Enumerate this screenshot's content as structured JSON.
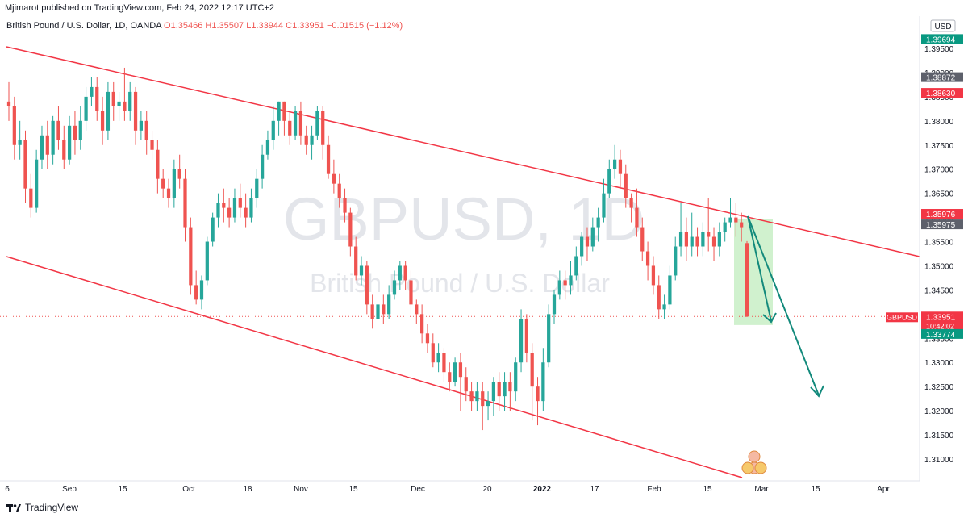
{
  "publisher": "Mjimarot published on TradingView.com, Feb 24, 2022 12:17 UTC+2",
  "symbol_line": "British Pound / U.S. Dollar, 1D, OANDA",
  "ohlc": {
    "o": "O1.35466",
    "h": "H1.35507",
    "l": "L1.33944",
    "c": "C1.33951",
    "chg": "−0.01515 (−1.12%)"
  },
  "watermark": {
    "ticker": "GBPUSD, 1D",
    "name": "British Pound / U.S. Dollar"
  },
  "footer": "TradingView",
  "colors": {
    "up": "#26a69a",
    "down": "#ef5350",
    "channel": "#f23645",
    "arrow": "#138a7c",
    "target": "#c8efc6"
  },
  "chart_data": {
    "type": "candlestick",
    "currency": "USD",
    "y_ticks": [
      "1.31000",
      "1.31500",
      "1.32000",
      "1.32500",
      "1.33000",
      "1.33500",
      "1.34000",
      "1.34500",
      "1.35000",
      "1.35500",
      "1.36000",
      "1.36500",
      "1.37000",
      "1.37500",
      "1.38000",
      "1.38500",
      "1.39000",
      "1.39500"
    ],
    "ylim": [
      1.3065,
      1.4005
    ],
    "x_ticks": [
      "6",
      "Sep",
      "15",
      "Oct",
      "18",
      "Nov",
      "15",
      "Dec",
      "20",
      "2022",
      "17",
      "Feb",
      "15",
      "Mar",
      "15",
      "Apr"
    ],
    "price_labels": [
      {
        "text": "1.39694",
        "value": 1.39694,
        "color": "#089981"
      },
      {
        "text": "1.38872",
        "value": 1.38872,
        "color": "#5d606b"
      },
      {
        "text": "1.38630",
        "value": 1.3863,
        "color": "#f23645"
      },
      {
        "text": "1.35976",
        "value": 1.35976,
        "color": "#f23645"
      },
      {
        "text": "1.35975",
        "value": 1.35975,
        "color": "#5d606b"
      },
      {
        "text": "1.33951",
        "value": 1.33951,
        "color": "#f23645",
        "tag": "GBPUSD",
        "sub": "10:42:02"
      },
      {
        "text": "1.33774",
        "value": 1.33774,
        "color": "#089981"
      }
    ],
    "last_price": 1.33951,
    "candles": [
      [
        1.384,
        1.383,
        1.388,
        1.38
      ],
      [
        1.383,
        1.375,
        1.385,
        1.372
      ],
      [
        1.375,
        1.376,
        1.38,
        1.372
      ],
      [
        1.376,
        1.366,
        1.378,
        1.363
      ],
      [
        1.366,
        1.362,
        1.369,
        1.36
      ],
      [
        1.362,
        1.372,
        1.374,
        1.361
      ],
      [
        1.372,
        1.377,
        1.379,
        1.37
      ],
      [
        1.377,
        1.373,
        1.38,
        1.37
      ],
      [
        1.373,
        1.38,
        1.381,
        1.371
      ],
      [
        1.38,
        1.376,
        1.383,
        1.374
      ],
      [
        1.376,
        1.372,
        1.379,
        1.37
      ],
      [
        1.372,
        1.379,
        1.381,
        1.371
      ],
      [
        1.379,
        1.376,
        1.382,
        1.373
      ],
      [
        1.376,
        1.38,
        1.383,
        1.374
      ],
      [
        1.38,
        1.385,
        1.387,
        1.378
      ],
      [
        1.385,
        1.387,
        1.389,
        1.383
      ],
      [
        1.387,
        1.382,
        1.389,
        1.38
      ],
      [
        1.382,
        1.378,
        1.385,
        1.375
      ],
      [
        1.378,
        1.386,
        1.388,
        1.376
      ],
      [
        1.386,
        1.383,
        1.388,
        1.38
      ],
      [
        1.383,
        1.384,
        1.386,
        1.38
      ],
      [
        1.384,
        1.382,
        1.391,
        1.38
      ],
      [
        1.382,
        1.386,
        1.388,
        1.38
      ],
      [
        1.386,
        1.378,
        1.387,
        1.375
      ],
      [
        1.378,
        1.38,
        1.382,
        1.376
      ],
      [
        1.38,
        1.376,
        1.382,
        1.373
      ],
      [
        1.376,
        1.374,
        1.378,
        1.372
      ],
      [
        1.374,
        1.368,
        1.376,
        1.365
      ],
      [
        1.368,
        1.366,
        1.37,
        1.364
      ],
      [
        1.366,
        1.364,
        1.368,
        1.362
      ],
      [
        1.364,
        1.37,
        1.372,
        1.362
      ],
      [
        1.37,
        1.368,
        1.373,
        1.366
      ],
      [
        1.368,
        1.358,
        1.37,
        1.355
      ],
      [
        1.358,
        1.346,
        1.36,
        1.344
      ],
      [
        1.346,
        1.343,
        1.349,
        1.342
      ],
      [
        1.343,
        1.347,
        1.348,
        1.341
      ],
      [
        1.347,
        1.355,
        1.356,
        1.346
      ],
      [
        1.355,
        1.36,
        1.361,
        1.354
      ],
      [
        1.36,
        1.363,
        1.365,
        1.358
      ],
      [
        1.363,
        1.362,
        1.366,
        1.359
      ],
      [
        1.362,
        1.36,
        1.364,
        1.358
      ],
      [
        1.36,
        1.364,
        1.366,
        1.359
      ],
      [
        1.364,
        1.362,
        1.367,
        1.36
      ],
      [
        1.362,
        1.36,
        1.365,
        1.358
      ],
      [
        1.36,
        1.364,
        1.366,
        1.359
      ],
      [
        1.364,
        1.368,
        1.37,
        1.362
      ],
      [
        1.368,
        1.373,
        1.375,
        1.366
      ],
      [
        1.373,
        1.376,
        1.378,
        1.372
      ],
      [
        1.376,
        1.38,
        1.383,
        1.374
      ],
      [
        1.38,
        1.384,
        1.384,
        1.377
      ],
      [
        1.384,
        1.38,
        1.384,
        1.377
      ],
      [
        1.38,
        1.377,
        1.382,
        1.375
      ],
      [
        1.377,
        1.382,
        1.383,
        1.376
      ],
      [
        1.382,
        1.377,
        1.384,
        1.375
      ],
      [
        1.377,
        1.375,
        1.379,
        1.373
      ],
      [
        1.375,
        1.377,
        1.379,
        1.372
      ],
      [
        1.377,
        1.382,
        1.383,
        1.376
      ],
      [
        1.382,
        1.375,
        1.383,
        1.372
      ],
      [
        1.375,
        1.369,
        1.377,
        1.368
      ],
      [
        1.369,
        1.367,
        1.372,
        1.365
      ],
      [
        1.367,
        1.364,
        1.369,
        1.362
      ],
      [
        1.364,
        1.361,
        1.366,
        1.359
      ],
      [
        1.361,
        1.354,
        1.362,
        1.352
      ],
      [
        1.354,
        1.348,
        1.356,
        1.347
      ],
      [
        1.348,
        1.35,
        1.352,
        1.346
      ],
      [
        1.35,
        1.342,
        1.351,
        1.34
      ],
      [
        1.342,
        1.339,
        1.344,
        1.337
      ],
      [
        1.339,
        1.342,
        1.344,
        1.338
      ],
      [
        1.342,
        1.34,
        1.344,
        1.338
      ],
      [
        1.34,
        1.344,
        1.346,
        1.339
      ],
      [
        1.344,
        1.347,
        1.349,
        1.343
      ],
      [
        1.347,
        1.35,
        1.351,
        1.345
      ],
      [
        1.35,
        1.347,
        1.351,
        1.345
      ],
      [
        1.347,
        1.342,
        1.349,
        1.34
      ],
      [
        1.342,
        1.34,
        1.343,
        1.338
      ],
      [
        1.34,
        1.336,
        1.342,
        1.334
      ],
      [
        1.336,
        1.334,
        1.338,
        1.332
      ],
      [
        1.334,
        1.33,
        1.336,
        1.329
      ],
      [
        1.33,
        1.332,
        1.334,
        1.328
      ],
      [
        1.332,
        1.328,
        1.333,
        1.326
      ],
      [
        1.328,
        1.326,
        1.33,
        1.324
      ],
      [
        1.326,
        1.33,
        1.331,
        1.325
      ],
      [
        1.33,
        1.327,
        1.332,
        1.32
      ],
      [
        1.327,
        1.324,
        1.329,
        1.322
      ],
      [
        1.324,
        1.322,
        1.326,
        1.32
      ],
      [
        1.322,
        1.324,
        1.326,
        1.32
      ],
      [
        1.324,
        1.321,
        1.326,
        1.316
      ],
      [
        1.321,
        1.322,
        1.324,
        1.318
      ],
      [
        1.322,
        1.326,
        1.327,
        1.319
      ],
      [
        1.326,
        1.323,
        1.328,
        1.32
      ],
      [
        1.323,
        1.326,
        1.328,
        1.32
      ],
      [
        1.326,
        1.324,
        1.328,
        1.32
      ],
      [
        1.324,
        1.33,
        1.331,
        1.322
      ],
      [
        1.33,
        1.339,
        1.341,
        1.328
      ],
      [
        1.339,
        1.332,
        1.34,
        1.33
      ],
      [
        1.332,
        1.325,
        1.334,
        1.318
      ],
      [
        1.325,
        1.322,
        1.327,
        1.317
      ],
      [
        1.322,
        1.33,
        1.333,
        1.32
      ],
      [
        1.33,
        1.34,
        1.342,
        1.329
      ],
      [
        1.34,
        1.344,
        1.345,
        1.338
      ],
      [
        1.344,
        1.347,
        1.349,
        1.343
      ],
      [
        1.347,
        1.346,
        1.349,
        1.343
      ],
      [
        1.346,
        1.348,
        1.351,
        1.344
      ],
      [
        1.348,
        1.352,
        1.354,
        1.347
      ],
      [
        1.352,
        1.356,
        1.357,
        1.35
      ],
      [
        1.356,
        1.354,
        1.358,
        1.351
      ],
      [
        1.354,
        1.358,
        1.36,
        1.353
      ],
      [
        1.358,
        1.36,
        1.362,
        1.355
      ],
      [
        1.36,
        1.365,
        1.368,
        1.359
      ],
      [
        1.365,
        1.37,
        1.372,
        1.364
      ],
      [
        1.37,
        1.372,
        1.375,
        1.368
      ],
      [
        1.372,
        1.369,
        1.374,
        1.366
      ],
      [
        1.369,
        1.364,
        1.371,
        1.362
      ],
      [
        1.364,
        1.362,
        1.365,
        1.359
      ],
      [
        1.362,
        1.358,
        1.366,
        1.356
      ],
      [
        1.358,
        1.353,
        1.36,
        1.351
      ],
      [
        1.353,
        1.35,
        1.355,
        1.347
      ],
      [
        1.35,
        1.346,
        1.352,
        1.344
      ],
      [
        1.346,
        1.341,
        1.348,
        1.339
      ],
      [
        1.341,
        1.342,
        1.344,
        1.339
      ],
      [
        1.342,
        1.348,
        1.35,
        1.341
      ],
      [
        1.348,
        1.354,
        1.356,
        1.347
      ],
      [
        1.354,
        1.357,
        1.363,
        1.352
      ],
      [
        1.357,
        1.354,
        1.36,
        1.351
      ],
      [
        1.354,
        1.356,
        1.361,
        1.352
      ],
      [
        1.356,
        1.354,
        1.358,
        1.352
      ],
      [
        1.354,
        1.357,
        1.359,
        1.352
      ],
      [
        1.357,
        1.356,
        1.364,
        1.353
      ],
      [
        1.356,
        1.354,
        1.358,
        1.351
      ],
      [
        1.354,
        1.357,
        1.359,
        1.352
      ],
      [
        1.357,
        1.359,
        1.36,
        1.355
      ],
      [
        1.359,
        1.36,
        1.364,
        1.358
      ],
      [
        1.36,
        1.359,
        1.363,
        1.356
      ],
      [
        1.359,
        1.358,
        1.361,
        1.355
      ],
      [
        1.3547,
        1.3395,
        1.3551,
        1.3394
      ]
    ]
  }
}
